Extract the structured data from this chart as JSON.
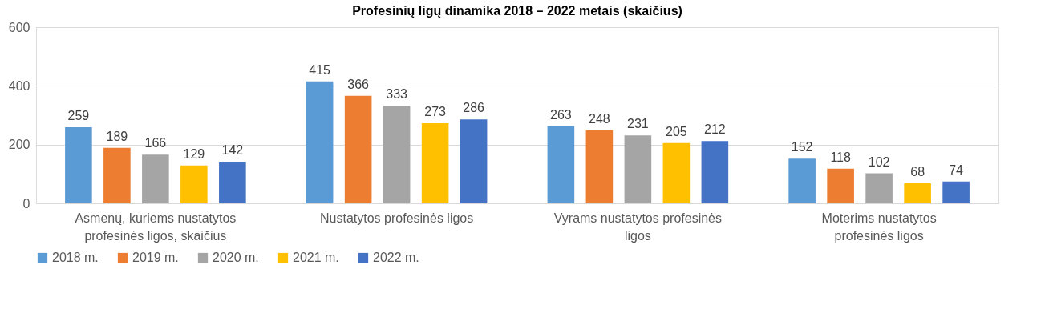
{
  "chart_data": {
    "type": "bar",
    "title": "Profesinių ligų dinamika 2018 – 2022 metais (skaičius)",
    "categories": [
      "Asmenų, kuriems nustatytos\nprofesinės ligos, skaičius",
      "Nustatytos profesinės ligos",
      "Vyrams nustatytos profesinės\nligos",
      "Moterims nustatytos\nprofesinės ligos"
    ],
    "series": [
      {
        "name": "2018 m.",
        "color": "#5b9bd5",
        "values": [
          259,
          415,
          263,
          152
        ]
      },
      {
        "name": "2019 m.",
        "color": "#ed7d31",
        "values": [
          189,
          366,
          248,
          118
        ]
      },
      {
        "name": "2020 m.",
        "color": "#a5a5a5",
        "values": [
          166,
          333,
          231,
          102
        ]
      },
      {
        "name": "2021 m.",
        "color": "#ffc000",
        "values": [
          129,
          273,
          205,
          68
        ]
      },
      {
        "name": "2022 m.",
        "color": "#4472c4",
        "values": [
          142,
          286,
          212,
          74
        ]
      }
    ],
    "ylim": [
      0,
      600
    ],
    "yticks": [
      0,
      200,
      400,
      600
    ],
    "grid": "y",
    "legend": "bottom",
    "data_labels": true
  }
}
